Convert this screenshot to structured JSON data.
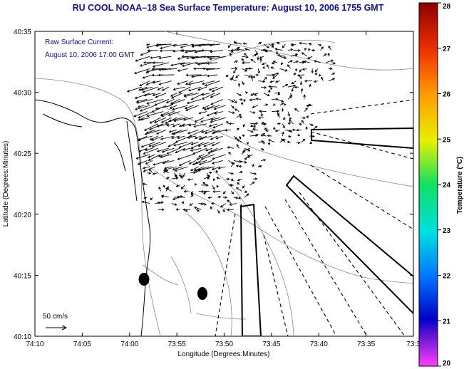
{
  "title": "RU COOL  NOAA–18  Sea Surface Temperature:  August 10, 2006 1755 GMT",
  "current_label": {
    "line1": "Raw Surface Current:",
    "line2": "August 10, 2006 17:00 GMT"
  },
  "scale_label": "50 cm/s",
  "axes": {
    "xlabel": "Longitude (Degrees:Minutes)",
    "ylabel": "Latitude (Degrees:Minutes)",
    "x_ticks": [
      "74:10",
      "74:05",
      "74:00",
      "73:55",
      "73:50",
      "73:45",
      "73:40",
      "73:35",
      "73:3"
    ],
    "y_ticks": [
      "40:35",
      "40:30",
      "40:25",
      "40:20",
      "40:15",
      "40:10"
    ]
  },
  "colorbar": {
    "label": "Temperature (°C)",
    "ticks": [
      "28",
      "27",
      "26",
      "25",
      "24",
      "23",
      "22",
      "21",
      "20"
    ],
    "min": 20,
    "max": 28
  },
  "colors": {
    "title": "#10109a",
    "coast": "#000000",
    "bathymetry": "#888888"
  },
  "icons": [
    "velocity-arrow-icon",
    "buoy-marker-icon"
  ]
}
